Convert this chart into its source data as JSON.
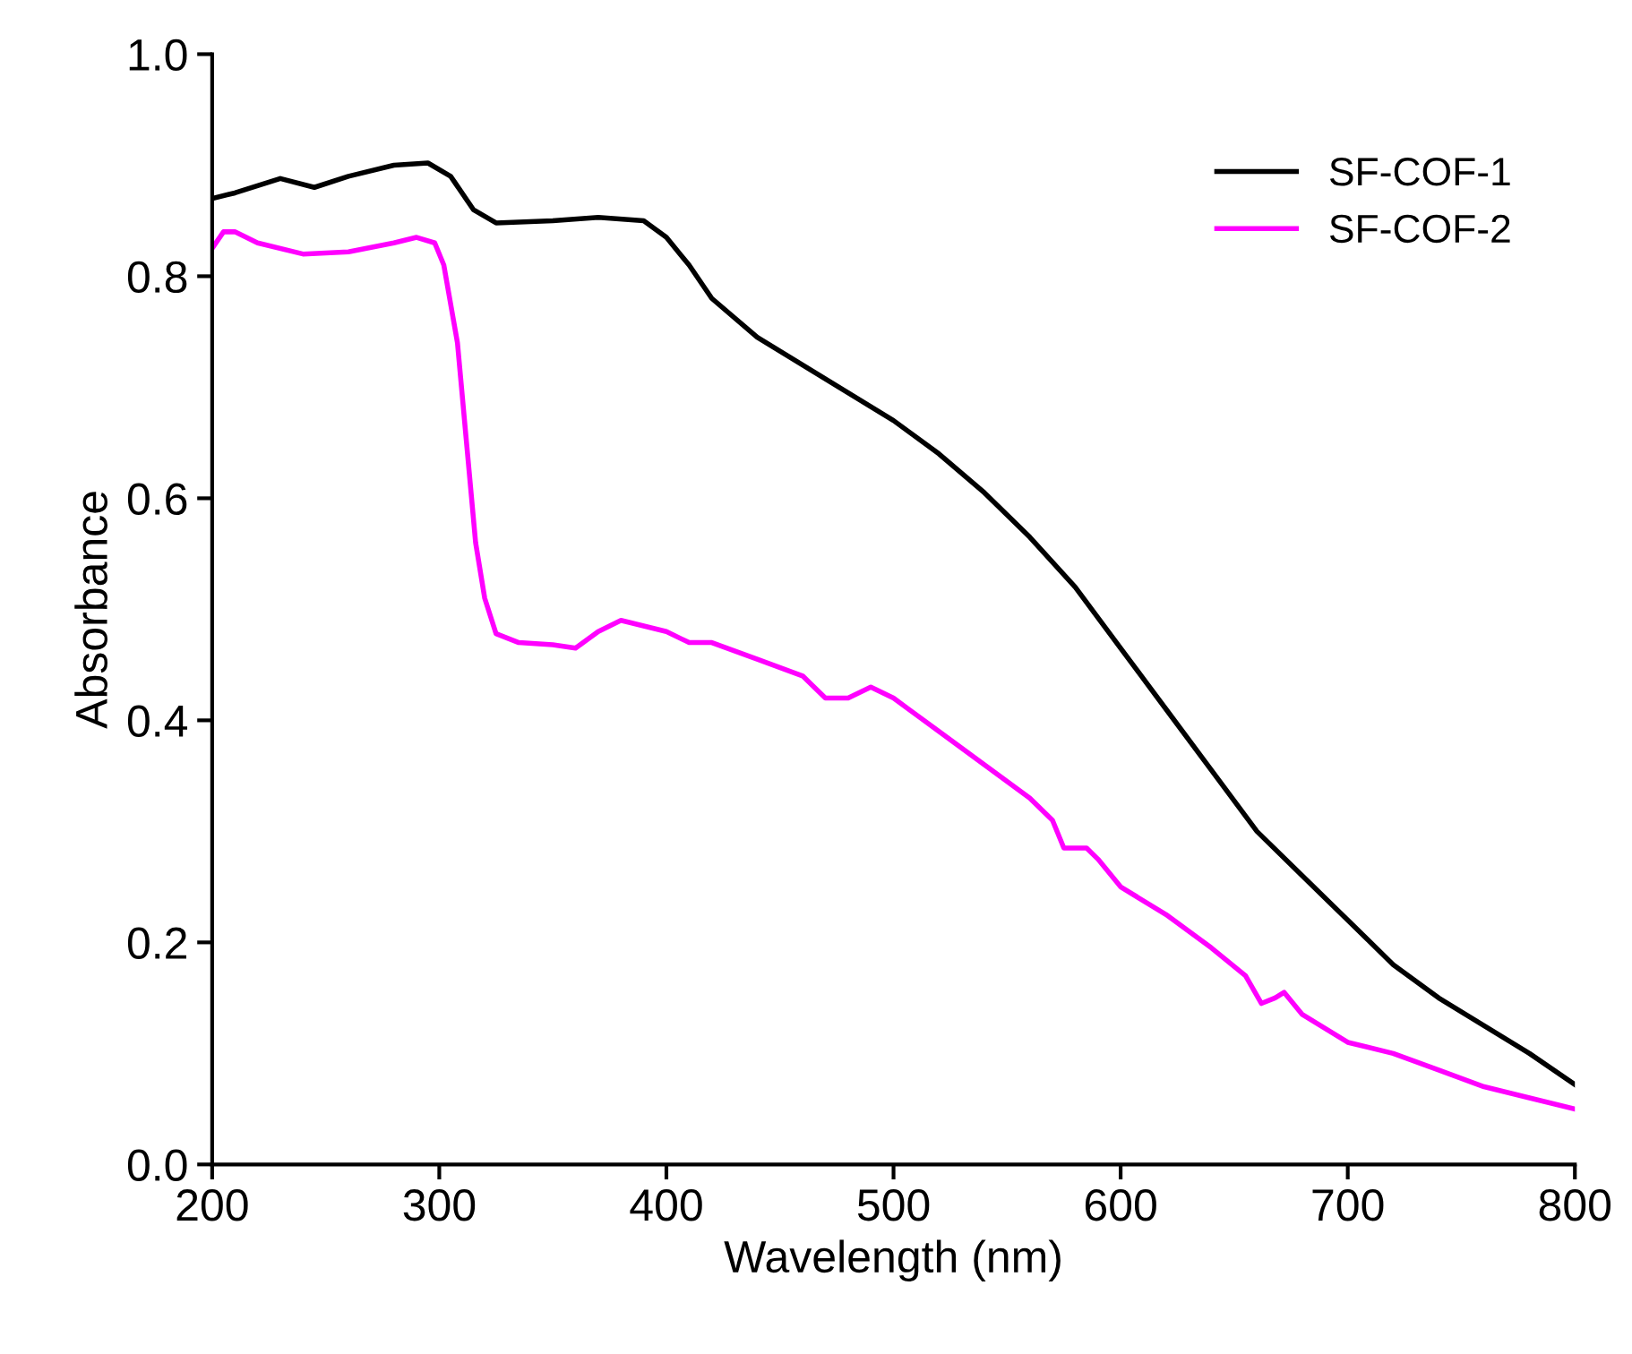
{
  "chart_data": {
    "type": "line",
    "xlabel": "Wavelength (nm)",
    "ylabel": "Absorbance",
    "xlim": [
      200,
      800
    ],
    "xticks": [
      200,
      300,
      400,
      500,
      600,
      700,
      800
    ],
    "ylim": [
      0.0,
      1.0
    ],
    "yticks": [
      {
        "value": 0.0,
        "label": "0.0"
      },
      0.2,
      0.4,
      0.6,
      0.8,
      {
        "value": 1.0,
        "label": "1.0"
      }
    ],
    "legend": "top right",
    "grid": false,
    "marker": "none",
    "line_style": "solid",
    "series": [
      {
        "name": "SF-COF-1",
        "color": "#000000",
        "x": [
          200,
          210,
          230,
          245,
          260,
          280,
          295,
          305,
          315,
          325,
          350,
          370,
          390,
          400,
          410,
          420,
          440,
          460,
          480,
          500,
          520,
          540,
          560,
          580,
          600,
          620,
          640,
          660,
          680,
          700,
          720,
          740,
          760,
          780,
          800
        ],
        "values": [
          0.87,
          0.875,
          0.888,
          0.88,
          0.89,
          0.9,
          0.902,
          0.89,
          0.86,
          0.848,
          0.85,
          0.853,
          0.85,
          0.835,
          0.81,
          0.78,
          0.745,
          0.72,
          0.695,
          0.67,
          0.64,
          0.605,
          0.565,
          0.52,
          0.465,
          0.41,
          0.355,
          0.3,
          0.26,
          0.22,
          0.18,
          0.15,
          0.125,
          0.1,
          0.072
        ]
      },
      {
        "name": "SF-COF-2",
        "color": "#ff00ff",
        "x": [
          200,
          205,
          210,
          220,
          240,
          260,
          280,
          290,
          298,
          302,
          308,
          312,
          316,
          320,
          325,
          335,
          350,
          360,
          370,
          380,
          390,
          400,
          410,
          420,
          440,
          460,
          470,
          480,
          490,
          500,
          520,
          540,
          560,
          570,
          575,
          585,
          590,
          600,
          620,
          640,
          655,
          662,
          668,
          672,
          680,
          700,
          720,
          740,
          760,
          780,
          800
        ],
        "values": [
          0.825,
          0.84,
          0.84,
          0.83,
          0.82,
          0.822,
          0.83,
          0.835,
          0.83,
          0.81,
          0.74,
          0.65,
          0.56,
          0.51,
          0.478,
          0.47,
          0.468,
          0.465,
          0.48,
          0.49,
          0.485,
          0.48,
          0.47,
          0.47,
          0.455,
          0.44,
          0.42,
          0.42,
          0.43,
          0.42,
          0.39,
          0.36,
          0.33,
          0.31,
          0.285,
          0.285,
          0.275,
          0.25,
          0.225,
          0.195,
          0.17,
          0.145,
          0.15,
          0.155,
          0.135,
          0.11,
          0.1,
          0.085,
          0.07,
          0.06,
          0.05
        ]
      }
    ]
  }
}
